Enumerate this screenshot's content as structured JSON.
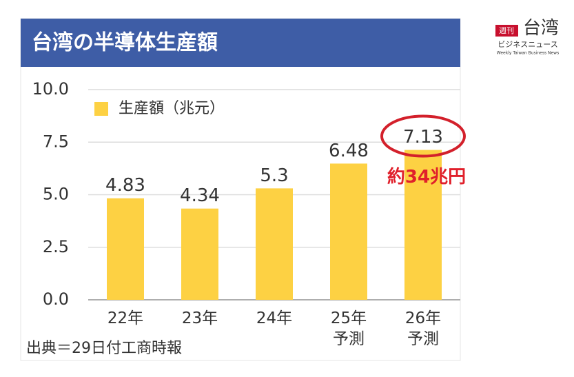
{
  "chart_data": {
    "type": "bar",
    "title": "台湾の半導体生産額",
    "categories": [
      "22年",
      "23年",
      "24年",
      "25年\n予測",
      "26年\n予測"
    ],
    "series": [
      {
        "name": "生産額（兆元）",
        "color": "#fdd143",
        "values": [
          4.83,
          4.34,
          5.3,
          6.48,
          7.13
        ]
      }
    ],
    "ylim": [
      0,
      10
    ],
    "yticks": [
      {
        "value": 0,
        "label": "0.0"
      },
      2.5,
      {
        "value": 5,
        "label": "5.0"
      },
      7.5,
      {
        "value": 10,
        "label": "10.0"
      }
    ],
    "grid": true,
    "legend": "top-left",
    "annotation": "約34兆円",
    "source": "出典＝29日付工商時報"
  },
  "logo": {
    "badge": "週刊",
    "name": "台湾",
    "subtitle": "ビジネスニュース",
    "english": "Weekly Taiwan Business News"
  }
}
